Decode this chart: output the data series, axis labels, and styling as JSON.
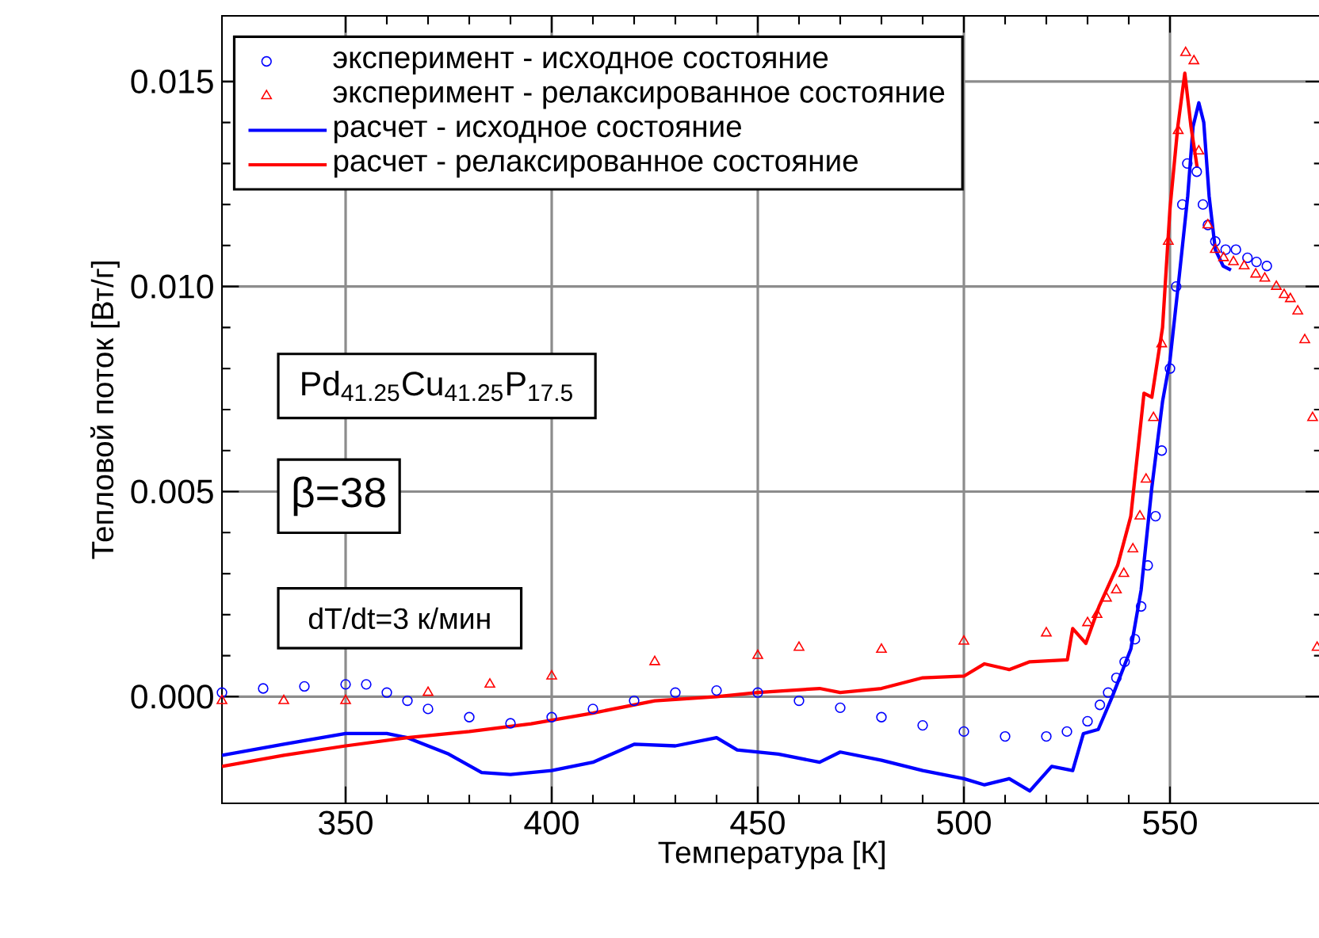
{
  "chart_data": {
    "type": "line",
    "xlabel": "Температура [К]",
    "ylabel": "Тепловой поток [Вт/г]",
    "xlim": [
      320,
      587
    ],
    "ylim": [
      -0.0026,
      0.0166
    ],
    "xticks": [
      350,
      400,
      450,
      500,
      550
    ],
    "yticks": [
      {
        "value": 0,
        "label": "0.000"
      },
      {
        "value": 0.005,
        "label": "0.005"
      },
      {
        "value": 0.01,
        "label": "0.010"
      },
      {
        "value": 0.015,
        "label": "0.015"
      }
    ],
    "grid": true,
    "legend": "top left",
    "annotations": [
      "Pd$_{41.25}$Cu$_{41.25}$P$_{17.5}$",
      "β=38",
      "dT/dt=3 к/мин"
    ],
    "series": [
      {
        "name": "эксперимент - исходное состояние",
        "type": "scatter",
        "marker": "circle",
        "color": "#0000ff",
        "x": [
          320,
          330,
          340,
          350,
          355,
          360,
          365,
          370,
          380,
          390,
          400,
          410,
          420,
          430,
          440,
          450,
          460,
          470,
          480,
          490,
          500,
          510,
          520,
          525,
          530,
          533,
          535,
          537,
          539,
          541.5,
          543,
          544.6,
          546.5,
          548,
          550,
          551.5,
          553,
          554.2,
          556.5,
          558,
          559.2,
          561,
          563.5,
          566,
          568.8,
          571,
          573.5
        ],
        "values": [
          0.0001,
          0.0002,
          0.00025,
          0.0003,
          0.0003,
          0.0001,
          -0.0001,
          -0.0003,
          -0.0005,
          -0.00065,
          -0.0005,
          -0.0003,
          -0.0001,
          0.0001,
          0.00015,
          0.0001,
          -0.0001,
          -0.00027,
          -0.0005,
          -0.0007,
          -0.00085,
          -0.00097,
          -0.00097,
          -0.00085,
          -0.0006,
          -0.0002,
          0.0001,
          0.00046,
          0.00085,
          0.0014,
          0.0022,
          0.0032,
          0.0044,
          0.006,
          0.008,
          0.01,
          0.012,
          0.013,
          0.0128,
          0.012,
          0.0115,
          0.0111,
          0.0109,
          0.0109,
          0.0107,
          0.0106,
          0.0105
        ]
      },
      {
        "name": "эксперимент - релаксированное состояние",
        "type": "scatter",
        "marker": "triangle",
        "color": "#ff0000",
        "x": [
          320,
          335,
          350,
          370,
          385,
          400,
          425,
          450,
          460,
          480,
          500,
          520,
          530,
          532.3,
          534.6,
          537,
          538.8,
          541,
          542.7,
          544.2,
          546,
          548,
          549.6,
          552,
          553.8,
          555.8,
          557,
          559.2,
          561,
          563,
          565.4,
          568,
          570.8,
          573,
          575.8,
          577.7,
          579.2,
          581,
          582.7,
          584.6,
          585.7
        ],
        "values": [
          -0.0001,
          -0.0001,
          -0.0001,
          0.0001,
          0.0003,
          0.0005,
          0.00085,
          0.001,
          0.0012,
          0.00115,
          0.00135,
          0.00155,
          0.0018,
          0.002,
          0.0024,
          0.0026,
          0.003,
          0.0036,
          0.0044,
          0.0053,
          0.0068,
          0.0086,
          0.0111,
          0.0138,
          0.0157,
          0.0155,
          0.0133,
          0.0115,
          0.0109,
          0.0107,
          0.0106,
          0.0105,
          0.0103,
          0.0102,
          0.01,
          0.0098,
          0.0097,
          0.0094,
          0.0087,
          0.0068,
          0.0012
        ]
      },
      {
        "name": "расчет - исходное состояние",
        "type": "line",
        "color": "#0000ff",
        "x": [
          320,
          335,
          350,
          360,
          365,
          375,
          383,
          390,
          400,
          410,
          420,
          430,
          440,
          445,
          455,
          465,
          470,
          480,
          490,
          500,
          505,
          511,
          516,
          521.3,
          526.4,
          529,
          532.6,
          536,
          540.5,
          543,
          545.6,
          548.2,
          550,
          552.3,
          554.3,
          555.6,
          557,
          558.2,
          559.5,
          561,
          562.9,
          564.8
        ],
        "values": [
          -0.00143,
          -0.00116,
          -0.0009,
          -0.0009,
          -0.001,
          -0.0014,
          -0.00185,
          -0.0019,
          -0.0018,
          -0.0016,
          -0.00116,
          -0.0012,
          -0.001,
          -0.0013,
          -0.0014,
          -0.0016,
          -0.00135,
          -0.00155,
          -0.0018,
          -0.002,
          -0.00215,
          -0.002,
          -0.0023,
          -0.0017,
          -0.0018,
          -0.0009,
          -0.0008,
          0,
          0.00116,
          0.0026,
          0.0051,
          0.0072,
          0.0082,
          0.0103,
          0.0122,
          0.0139,
          0.01448,
          0.014,
          0.0122,
          0.0109,
          0.0105,
          0.0104
        ]
      },
      {
        "name": "расчет - релаксированное состояние",
        "type": "line",
        "color": "#ff0000",
        "x": [
          320,
          335,
          350,
          365,
          380,
          395,
          410,
          425,
          440,
          450,
          465,
          470,
          480,
          490,
          500,
          505,
          511,
          516,
          525.1,
          526.4,
          529.6,
          532.8,
          537.3,
          540.5,
          543.7,
          545.6,
          548.2,
          550,
          551.9,
          553.6,
          555.1,
          556.6
        ],
        "values": [
          -0.0017,
          -0.00143,
          -0.0012,
          -0.001,
          -0.00085,
          -0.00066,
          -0.0004,
          -0.0001,
          0,
          0.0001,
          0.0002,
          0.0001,
          0.0002,
          0.00046,
          0.0005,
          0.0008,
          0.00066,
          0.00085,
          0.0009,
          0.00166,
          0.0013,
          0.0022,
          0.0032,
          0.0044,
          0.0074,
          0.0073,
          0.009,
          0.0119,
          0.0139,
          0.0152,
          0.0139,
          0.0129
        ]
      }
    ]
  }
}
